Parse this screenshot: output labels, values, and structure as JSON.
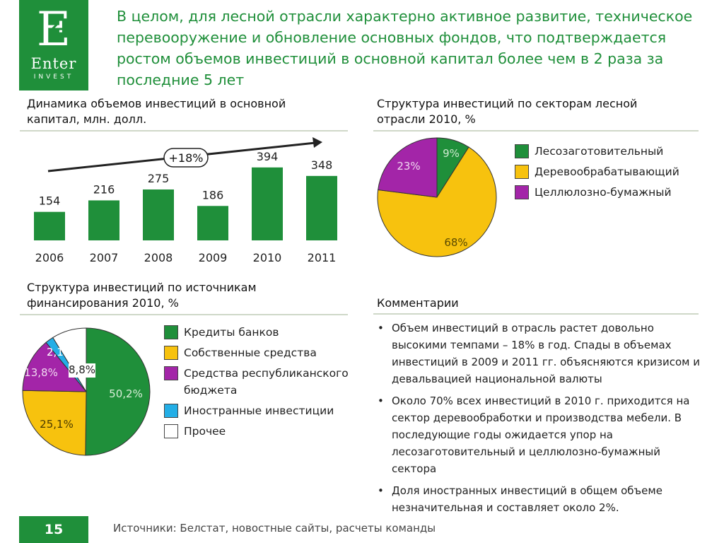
{
  "logo": {
    "letter": "E",
    "name": "Enter",
    "sub": "INVEST"
  },
  "headline": "В целом, для лесной отрасли характерно активное развитие, техническое перевооружение и обновление основных фондов, что подтверждается ростом объемов инвестиций в основной капитал более чем в 2 раза за последние 5 лет",
  "colors": {
    "green": "#1f8f3a",
    "yellow": "#f7c20e",
    "purple": "#a325a8",
    "cyan": "#23aee6",
    "white": "#ffffff"
  },
  "chart_data": [
    {
      "type": "bar",
      "title": "Динамика объемов инвестиций в основной капитал, млн. долл.",
      "categories": [
        "2006",
        "2007",
        "2008",
        "2009",
        "2010",
        "2011"
      ],
      "values": [
        154,
        216,
        275,
        186,
        394,
        348
      ],
      "annotation": "+18%",
      "color": "#1f8f3a",
      "ylim": [
        0,
        420
      ]
    },
    {
      "type": "pie",
      "title": "Структура инвестиций по секторам лесной отрасли 2010, %",
      "slices": [
        {
          "name": "Лесозаготовительный",
          "value": 9,
          "label": "9%",
          "color": "#1f8f3a"
        },
        {
          "name": "Деревообрабатывающий",
          "value": 68,
          "label": "68%",
          "color": "#f7c20e"
        },
        {
          "name": "Целлюлозно-бумажный",
          "value": 23,
          "label": "23%",
          "color": "#a325a8"
        }
      ]
    },
    {
      "type": "pie",
      "title": "Структура инвестиций по источникам финансирования 2010, %",
      "slices": [
        {
          "name": "Кредиты банков",
          "value": 50.2,
          "label": "50,2%",
          "color": "#1f8f3a"
        },
        {
          "name": "Собственные средства",
          "value": 25.1,
          "label": "25,1%",
          "color": "#f7c20e"
        },
        {
          "name": "Средства республиканского бюджета",
          "value": 13.8,
          "label": "13,8%",
          "color": "#a325a8"
        },
        {
          "name": "Иностранные инвестиции",
          "value": 2.1,
          "label": "2,1%",
          "color": "#23aee6"
        },
        {
          "name": "Прочее",
          "value": 8.8,
          "label": "8,8%",
          "color": "#ffffff"
        }
      ]
    }
  ],
  "comments": {
    "title": "Комментарии",
    "items": [
      "Объем инвестиций в отрасль растет довольно высокими темпами – 18% в год. Спады в объемах инвестиций в 2009 и 2011 гг. объясняются кризисом и девальвацией национальной валюты",
      "Около 70% всех инвестиций в 2010 г. приходится на сектор деревообработки и производства мебели. В последующие годы ожидается упор на лесозаготовительный и целлюлозно-бумажный сектора",
      "Доля иностранных инвестиций в общем объеме незначительная и составляет около 2%."
    ]
  },
  "page_number": "15",
  "footer": "Источники: Белстат, новостные сайты, расчеты команды"
}
